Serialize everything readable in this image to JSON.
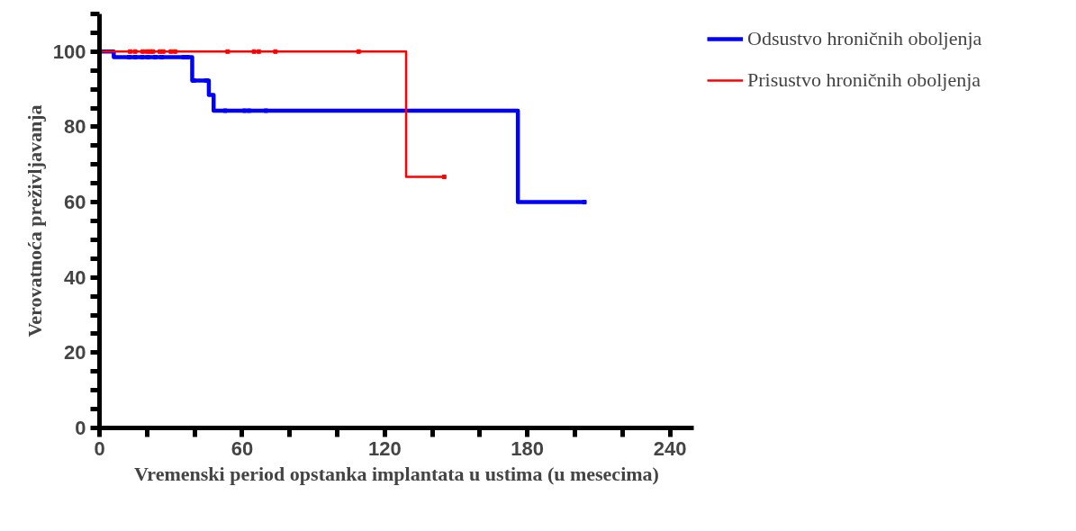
{
  "chart_data": {
    "type": "step",
    "xlabel": "Vremenski period opstanka implantata u ustima (u mesecima)",
    "ylabel": "Verovatnoća preživljavanja",
    "xlim": [
      0,
      250
    ],
    "ylim": [
      0,
      110
    ],
    "xticks": [
      0,
      {
        "value": 20,
        "label": null
      },
      {
        "value": 40,
        "label": null
      },
      60,
      {
        "value": 80,
        "label": null
      },
      {
        "value": 100,
        "label": null
      },
      120,
      {
        "value": 140,
        "label": null
      },
      {
        "value": 160,
        "label": null
      },
      180,
      {
        "value": 200,
        "label": null
      },
      {
        "value": 220,
        "label": null
      },
      240
    ],
    "yticks": [
      0,
      {
        "value": 5,
        "label": null
      },
      {
        "value": 10,
        "label": null
      },
      {
        "value": 15,
        "label": null
      },
      20,
      {
        "value": 25,
        "label": null
      },
      {
        "value": 30,
        "label": null
      },
      {
        "value": 35,
        "label": null
      },
      40,
      {
        "value": 45,
        "label": null
      },
      {
        "value": 50,
        "label": null
      },
      {
        "value": 55,
        "label": null
      },
      60,
      {
        "value": 65,
        "label": null
      },
      {
        "value": 70,
        "label": null
      },
      {
        "value": 75,
        "label": null
      },
      80,
      {
        "value": 85,
        "label": null
      },
      {
        "value": 90,
        "label": null
      },
      {
        "value": 95,
        "label": null
      },
      100,
      {
        "value": 105,
        "label": null
      },
      {
        "value": 110,
        "label": null
      }
    ],
    "grid": false,
    "legend": "top right",
    "marker": "none",
    "line_style": "solid",
    "series": [
      {
        "name": "Odsustvo hroničnih oboljenja",
        "color": "#0000ff",
        "x": [
          0,
          6,
          39,
          46,
          48,
          176,
          204
        ],
        "values": [
          100,
          98.5,
          92.3,
          88.5,
          84.3,
          60,
          60
        ]
      },
      {
        "name": "Prisustvo hroničnih oboljenja",
        "color": "#ff0000",
        "x": [
          0,
          129,
          145
        ],
        "values": [
          100,
          66.7,
          66.7
        ]
      },
      {
        "color": "#0000ff",
        "type": "scatter",
        "marker": "square",
        "x": [
          12.5,
          15,
          18,
          20.4,
          23.4,
          26.2,
          35.4,
          37,
          39.6,
          45,
          52.9,
          61,
          62.9,
          70,
          204
        ],
        "values": [
          98.5,
          98.5,
          98.5,
          98.5,
          98.5,
          98.5,
          98.5,
          98.5,
          92.3,
          92.3,
          84.3,
          84.3,
          84.3,
          84.3,
          60
        ]
      },
      {
        "color": "#ff0000",
        "type": "scatter",
        "marker": "square",
        "x": [
          12.9,
          15,
          18.2,
          20,
          21.4,
          22.5,
          25.4,
          26.8,
          30,
          31.8,
          53.9,
          65,
          67,
          74,
          109,
          145
        ],
        "values": [
          100,
          100,
          100,
          100,
          100,
          100,
          100,
          100,
          100,
          100,
          100,
          100,
          100,
          100,
          100,
          66.7
        ]
      }
    ]
  }
}
